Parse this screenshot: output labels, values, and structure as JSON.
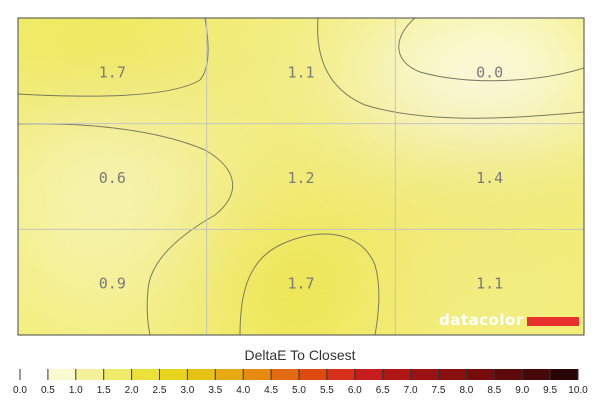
{
  "chart_data": {
    "type": "heatmap",
    "rows": [
      [
        1.7,
        1.1,
        0.0
      ],
      [
        0.6,
        1.2,
        1.4
      ],
      [
        0.9,
        1.7,
        1.1
      ]
    ],
    "color_scale": {
      "title": "DeltaE To Closest",
      "ticks": [
        "0.0",
        "0.5",
        "1.0",
        "1.5",
        "2.0",
        "2.5",
        "3.0",
        "3.5",
        "4.0",
        "4.5",
        "5.0",
        "5.5",
        "6.0",
        "6.5",
        "7.0",
        "7.5",
        "8.0",
        "8.5",
        "9.0",
        "9.5",
        "10.0"
      ],
      "min": 0,
      "max": 10,
      "swatches": [
        "#ffffff",
        "#fafad0",
        "#f5f09a",
        "#f0ea6a",
        "#ebe13a",
        "#e6d41c",
        "#e6c214",
        "#e6aa12",
        "#e68a12",
        "#e26a12",
        "#de4a12",
        "#d8301a",
        "#c61e1e",
        "#b01616",
        "#9c1212",
        "#8a0f0f",
        "#760c0c",
        "#5e0a0a",
        "#460808",
        "#2a0505"
      ]
    },
    "contours": true,
    "grid": true
  },
  "brand": {
    "name": "datacolor"
  },
  "colors": {
    "brand_bar": "#e8302e"
  }
}
